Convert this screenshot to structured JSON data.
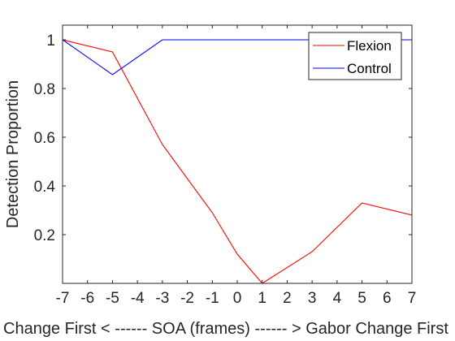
{
  "chart_data": {
    "type": "line",
    "title": "",
    "xlabel": "Change First < ------ SOA (frames) ------ > Gabor Change First",
    "ylabel": "Detection Proportion",
    "xlim": [
      -7,
      7
    ],
    "ylim": [
      0,
      1.06
    ],
    "xticks": [
      -7,
      -6,
      -5,
      -4,
      -3,
      -2,
      -1,
      0,
      1,
      2,
      3,
      4,
      5,
      6,
      7
    ],
    "yticks": [
      0.2,
      0.4,
      0.6,
      0.8,
      1
    ],
    "ytick_labels": [
      "0.2",
      "0.4",
      "0.6",
      "0.8",
      "1"
    ],
    "grid": false,
    "legend_position": "top-right",
    "series": [
      {
        "name": "Flexion",
        "color": "#ff0000",
        "x": [
          -7,
          -5,
          -3,
          -1,
          0,
          1,
          3,
          5,
          7
        ],
        "y": [
          1.0,
          0.95,
          0.57,
          0.29,
          0.12,
          0.0,
          0.13,
          0.33,
          0.28
        ]
      },
      {
        "name": "Control",
        "color": "#0000ff",
        "x": [
          -7,
          -5,
          -3,
          -1,
          1,
          3,
          5,
          7
        ],
        "y": [
          1.0,
          0.857,
          1.0,
          1.0,
          1.0,
          1.0,
          1.0,
          1.0
        ]
      }
    ]
  }
}
